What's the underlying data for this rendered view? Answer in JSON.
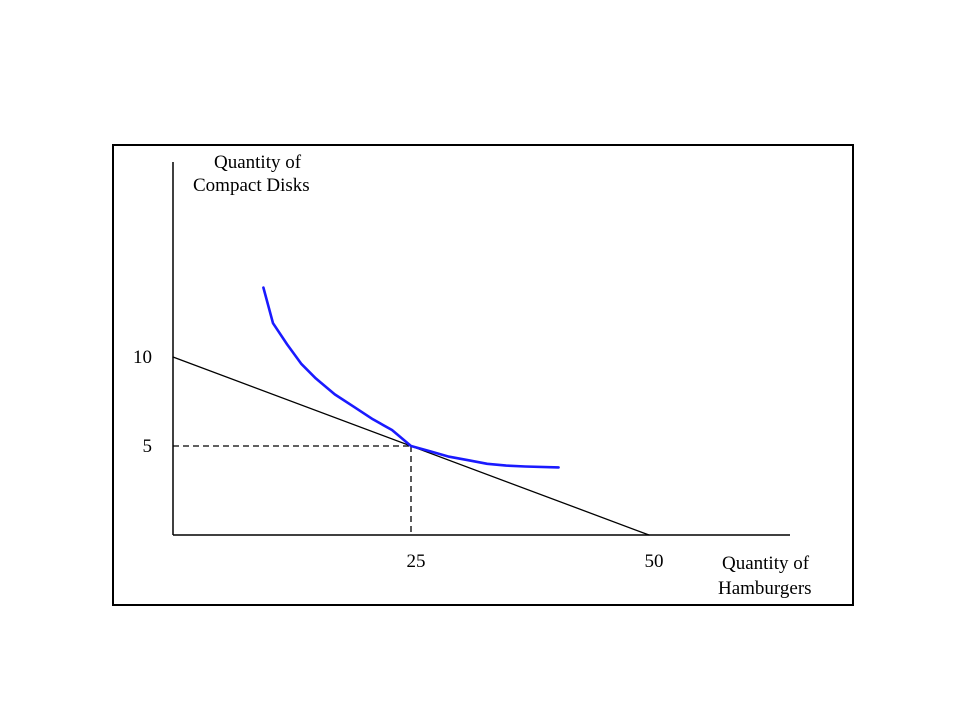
{
  "chart_data": {
    "type": "line",
    "title": "",
    "ylabel_lines": [
      "Quantity of",
      "Compact Disks"
    ],
    "xlabel_lines": [
      "Quantity of",
      "Hamburgers"
    ],
    "x_ticks": [
      {
        "value": 25,
        "label": "25"
      },
      {
        "value": 50,
        "label": "50"
      }
    ],
    "y_ticks": [
      {
        "value": 10,
        "label": "10"
      },
      {
        "value": 5,
        "label": "5"
      }
    ],
    "series": [
      {
        "kind": "budget-line",
        "color": "#000000",
        "points": [
          [
            0,
            10
          ],
          [
            50,
            0
          ]
        ]
      },
      {
        "kind": "indifference-curve",
        "color": "#1a1aff",
        "points": [
          [
            9.5,
            13.9
          ],
          [
            10.5,
            11.9
          ],
          [
            12,
            10.7
          ],
          [
            13.5,
            9.6
          ],
          [
            15,
            8.8
          ],
          [
            17,
            7.9
          ],
          [
            19,
            7.2
          ],
          [
            21,
            6.5
          ],
          [
            23,
            5.9
          ],
          [
            25,
            5.0
          ],
          [
            27,
            4.7
          ],
          [
            29,
            4.4
          ],
          [
            31,
            4.2
          ],
          [
            33,
            4.0
          ],
          [
            35,
            3.9
          ],
          [
            37,
            3.85
          ],
          [
            40.5,
            3.8
          ]
        ]
      }
    ],
    "guides": [
      {
        "kind": "dashed",
        "from": [
          0,
          5
        ],
        "to": [
          25,
          5
        ]
      },
      {
        "kind": "dashed",
        "from": [
          25,
          5
        ],
        "to": [
          25,
          0
        ]
      }
    ]
  },
  "colors": {
    "axis": "#000000",
    "curve": "#1a1aff",
    "budget": "#000000"
  }
}
